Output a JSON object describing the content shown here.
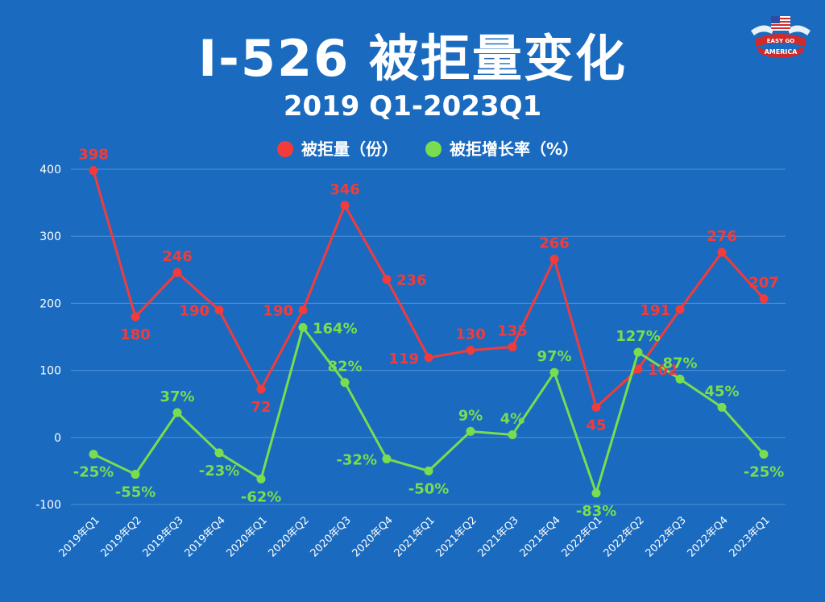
{
  "header": {
    "title": "I-526 被拒量变化",
    "subtitle": "2019 Q1-2023Q1"
  },
  "logo": {
    "text_top": "EASY GO",
    "text_bottom": "AMERICA",
    "icon": "us-flag-eagle-logo"
  },
  "colors": {
    "background": "#1a6bbf",
    "series_red": "#f23b3b",
    "series_green": "#78dd4f",
    "grid": "#4f92d6"
  },
  "chart_data": {
    "type": "line",
    "categories": [
      "2019年Q1",
      "2019年Q2",
      "2019年Q3",
      "2019年Q4",
      "2020年Q1",
      "2020年Q2",
      "2020年Q3",
      "2020年Q4",
      "2021年Q1",
      "2021年Q2",
      "2021年Q3",
      "2021年Q4",
      "2022年Q1",
      "2022年Q2",
      "2022年Q3",
      "2022年Q4",
      "2023年Q1"
    ],
    "ylim": [
      -100,
      400
    ],
    "yticks": [
      -100,
      0,
      100,
      200,
      300,
      400
    ],
    "grid": true,
    "legend_position": "top-center",
    "series": [
      {
        "name": "被拒量（份）",
        "color": "#f23b3b",
        "values": [
          398,
          180,
          246,
          190,
          72,
          190,
          346,
          236,
          119,
          130,
          135,
          266,
          45,
          102,
          191,
          276,
          207
        ],
        "labels": [
          "398",
          "180",
          "246",
          "190",
          "72",
          "190",
          "346",
          "236",
          "119",
          "130",
          "135",
          "266",
          "45",
          "102",
          "191",
          "276",
          "207"
        ]
      },
      {
        "name": "被拒增长率（%）",
        "color": "#78dd4f",
        "values": [
          -25,
          -55,
          37,
          -23,
          -62,
          164,
          82,
          -32,
          -50,
          9,
          4,
          97,
          -83,
          127,
          87,
          45,
          -25
        ],
        "labels": [
          "-25%",
          "-55%",
          "37%",
          "-23%",
          "-62%",
          "164%",
          "82%",
          "-32%",
          "-50%",
          "9%",
          "4%",
          "97%",
          "-83%",
          "127%",
          "87%",
          "45%",
          "-25%"
        ]
      }
    ]
  }
}
